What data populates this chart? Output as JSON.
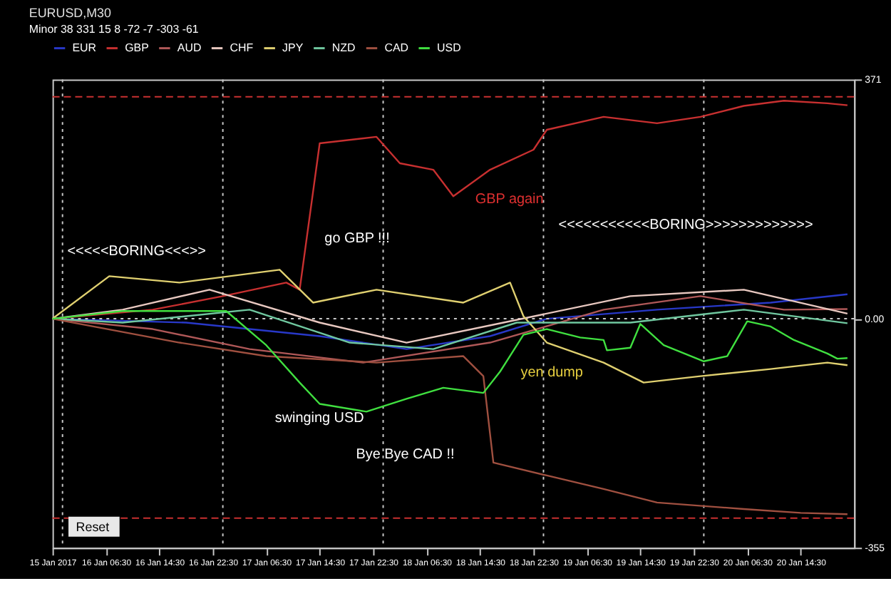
{
  "chart_data": {
    "type": "line",
    "title": "EURUSD,M30",
    "subtitle": "Minor 38 331 15 8 -72 -7 -303 -61",
    "xlim": [
      "2017-01-15T22:30",
      "2017-01-20T22:30"
    ],
    "ylim": [
      -355,
      371
    ],
    "xticks": [
      {
        "value": "2017-01-15T22:30",
        "label": "15 Jan 2017"
      },
      {
        "value": "2017-01-16T06:30",
        "label": "16 Jan 06:30"
      },
      {
        "value": "2017-01-16T14:30",
        "label": "16 Jan 14:30"
      },
      {
        "value": "2017-01-16T22:30",
        "label": "16 Jan 22:30"
      },
      {
        "value": "2017-01-17T06:30",
        "label": "17 Jan 06:30"
      },
      {
        "value": "2017-01-17T14:30",
        "label": "17 Jan 14:30"
      },
      {
        "value": "2017-01-17T22:30",
        "label": "17 Jan 22:30"
      },
      {
        "value": "2017-01-18T06:30",
        "label": "18 Jan 06:30"
      },
      {
        "value": "2017-01-18T14:30",
        "label": "18 Jan 14:30"
      },
      {
        "value": "2017-01-18T22:30",
        "label": "18 Jan 22:30"
      },
      {
        "value": "2017-01-19T06:30",
        "label": "19 Jan 06:30"
      },
      {
        "value": "2017-01-19T14:30",
        "label": "19 Jan 14:30"
      },
      {
        "value": "2017-01-19T22:30",
        "label": "19 Jan 22:30"
      },
      {
        "value": "2017-01-20T06:30",
        "label": "20 Jan 06:30"
      },
      {
        "value": "2017-01-20T14:30",
        "label": "20 Jan 14:30"
      }
    ],
    "yticks": [
      371,
      {
        "value": 0,
        "label": "0.00"
      },
      -355
    ],
    "grid": false,
    "legend": "top",
    "line_style": "solid",
    "marker": "none",
    "series": [
      {
        "name": "EUR",
        "color": "#2838c8",
        "x": [
          "2017-01-15T22:30",
          "2017-01-16T18:30",
          "2017-01-17T14:30",
          "2017-01-18T03:30",
          "2017-01-18T16:00",
          "2017-01-19T00:30",
          "2017-01-19T17:00",
          "2017-01-20T10:00",
          "2017-01-20T21:30"
        ],
        "values": [
          0,
          -6,
          -27,
          -47,
          -27,
          0,
          14,
          25,
          38
        ]
      },
      {
        "name": "GBP",
        "color": "#c83030",
        "x": [
          "2017-01-15T22:30",
          "2017-01-16T13:30",
          "2017-01-17T00:00",
          "2017-01-17T09:30",
          "2017-01-17T11:30",
          "2017-01-17T14:30",
          "2017-01-17T23:00",
          "2017-01-18T02:30",
          "2017-01-18T07:30",
          "2017-01-18T10:30",
          "2017-01-18T16:00",
          "2017-01-18T22:30",
          "2017-01-19T00:30",
          "2017-01-19T09:00",
          "2017-01-19T17:00",
          "2017-01-19T23:30",
          "2017-01-20T06:00",
          "2017-01-20T12:00",
          "2017-01-20T18:30",
          "2017-01-20T21:30"
        ],
        "values": [
          0,
          14,
          35,
          56,
          45,
          272,
          282,
          241,
          231,
          190,
          231,
          262,
          293,
          313,
          303,
          313,
          330,
          338,
          334,
          331
        ]
      },
      {
        "name": "AUD",
        "color": "#b05858",
        "x": [
          "2017-01-15T22:30",
          "2017-01-16T13:30",
          "2017-01-17T04:00",
          "2017-01-17T21:00",
          "2017-01-18T16:00",
          "2017-01-19T09:00",
          "2017-01-19T23:30",
          "2017-01-20T12:00",
          "2017-01-20T21:30"
        ],
        "values": [
          0,
          -16,
          -47,
          -68,
          -37,
          14,
          35,
          14,
          15
        ]
      },
      {
        "name": "CHF",
        "color": "#e8c8c0",
        "x": [
          "2017-01-15T22:30",
          "2017-01-16T09:00",
          "2017-01-16T22:00",
          "2017-01-17T14:30",
          "2017-01-18T03:30",
          "2017-01-18T18:00",
          "2017-01-19T13:00",
          "2017-01-20T06:00",
          "2017-01-20T21:30"
        ],
        "values": [
          0,
          14,
          45,
          -6,
          -37,
          -6,
          35,
          45,
          8
        ]
      },
      {
        "name": "JPY",
        "color": "#e0d070",
        "x": [
          "2017-01-15T22:30",
          "2017-01-16T07:00",
          "2017-01-16T17:30",
          "2017-01-17T08:30",
          "2017-01-17T13:30",
          "2017-01-17T23:00",
          "2017-01-18T12:00",
          "2017-01-18T19:00",
          "2017-01-18T21:00",
          "2017-01-19T00:30",
          "2017-01-19T09:00",
          "2017-01-19T15:00",
          "2017-01-19T23:30",
          "2017-01-20T10:00",
          "2017-01-20T18:30",
          "2017-01-20T21:30"
        ],
        "values": [
          0,
          66,
          56,
          76,
          25,
          45,
          25,
          56,
          4,
          -37,
          -68,
          -99,
          -89,
          -78,
          -68,
          -72
        ]
      },
      {
        "name": "NZD",
        "color": "#70c8a0",
        "x": [
          "2017-01-15T22:30",
          "2017-01-16T09:00",
          "2017-01-17T04:00",
          "2017-01-17T19:00",
          "2017-01-18T07:30",
          "2017-01-18T20:00",
          "2017-01-19T13:00",
          "2017-01-20T06:00",
          "2017-01-20T21:30"
        ],
        "values": [
          0,
          -6,
          14,
          -37,
          -47,
          -6,
          -6,
          14,
          -7
        ]
      },
      {
        "name": "CAD",
        "color": "#a05040",
        "x": [
          "2017-01-15T22:30",
          "2017-01-16T17:30",
          "2017-01-17T06:30",
          "2017-01-17T23:00",
          "2017-01-18T12:00",
          "2017-01-18T15:00",
          "2017-01-18T16:30",
          "2017-01-19T00:30",
          "2017-01-19T09:00",
          "2017-01-19T17:00",
          "2017-01-20T06:00",
          "2017-01-20T14:30",
          "2017-01-20T21:30"
        ],
        "values": [
          0,
          -37,
          -58,
          -68,
          -58,
          -89,
          -223,
          -243,
          -264,
          -285,
          -295,
          -301,
          -303
        ]
      },
      {
        "name": "USD",
        "color": "#40e040",
        "x": [
          "2017-01-15T22:30",
          "2017-01-16T09:00",
          "2017-01-17T00:30",
          "2017-01-17T06:30",
          "2017-01-17T11:30",
          "2017-01-17T14:30",
          "2017-01-17T21:30",
          "2017-01-18T03:30",
          "2017-01-18T09:00",
          "2017-01-18T15:00",
          "2017-01-18T17:30",
          "2017-01-18T21:00",
          "2017-01-19T00:30",
          "2017-01-19T05:30",
          "2017-01-19T09:00",
          "2017-01-19T09:30",
          "2017-01-19T13:00",
          "2017-01-19T14:30",
          "2017-01-19T18:00",
          "2017-01-20T00:00",
          "2017-01-20T03:30",
          "2017-01-20T06:30",
          "2017-01-20T10:00",
          "2017-01-20T13:30",
          "2017-01-20T18:30",
          "2017-01-20T20:00",
          "2017-01-20T21:30"
        ],
        "values": [
          0,
          12,
          12,
          -41,
          -99,
          -132,
          -144,
          -124,
          -107,
          -115,
          -82,
          -25,
          -16,
          -29,
          -33,
          -49,
          -45,
          -8,
          -41,
          -66,
          -58,
          -4,
          -12,
          -33,
          -54,
          -62,
          -61
        ]
      }
    ],
    "ref_lines": [
      {
        "axis": "y",
        "value": 0,
        "color": "#c8c8c8",
        "line_style": "dotted"
      },
      {
        "axis": "y",
        "value": 344,
        "color": "#c83030",
        "line_style": "dashed"
      },
      {
        "axis": "y",
        "value": -309,
        "color": "#c83030",
        "line_style": "dashed"
      },
      {
        "axis": "x",
        "value": "2017-01-16T00:00",
        "color": "#c8c8c8",
        "line_style": "dotted"
      },
      {
        "axis": "x",
        "value": "2017-01-17T00:00",
        "color": "#c8c8c8",
        "line_style": "dotted"
      },
      {
        "axis": "x",
        "value": "2017-01-18T00:00",
        "color": "#c8c8c8",
        "line_style": "dotted"
      },
      {
        "axis": "x",
        "value": "2017-01-19T00:00",
        "color": "#c8c8c8",
        "line_style": "dotted"
      },
      {
        "axis": "x",
        "value": "2017-01-20T00:00",
        "color": "#c8c8c8",
        "line_style": "dotted"
      }
    ],
    "annotations": [
      "<<<<<BORING<<<>>",
      "go GBP !!!",
      "GBP again",
      "<<<<<<<<<<<BORING>>>>>>>>>>>>>",
      "yen dump",
      "swinging USD",
      "Bye Bye CAD !!",
      "Reset"
    ]
  }
}
